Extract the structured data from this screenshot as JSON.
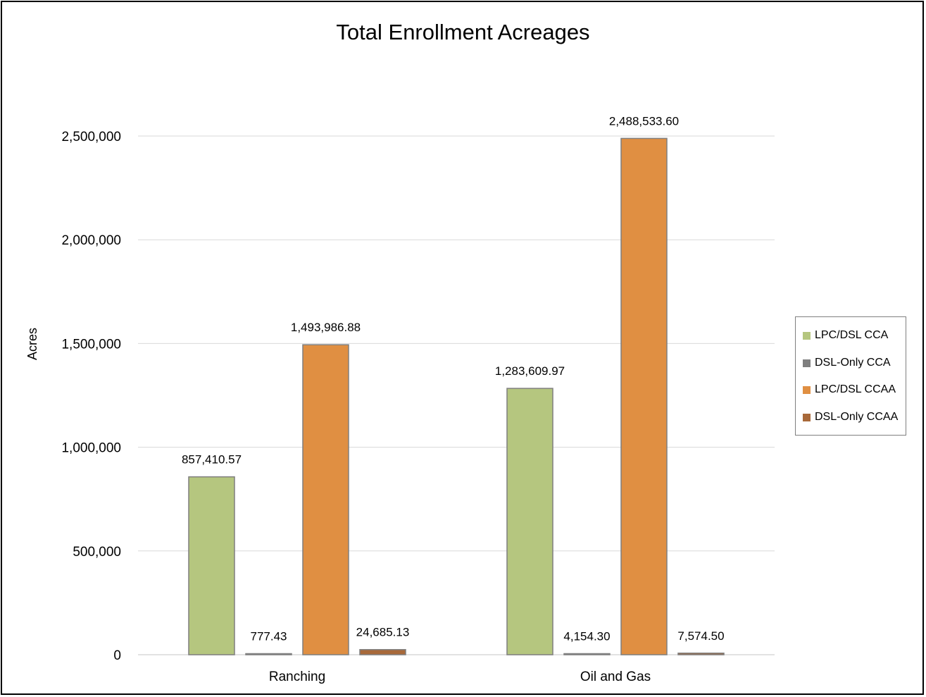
{
  "chart_data": {
    "type": "bar",
    "title": "Total Enrollment Acreages",
    "xlabel": "",
    "ylabel": "Acres",
    "categories": [
      "Ranching",
      "Oil and Gas"
    ],
    "series": [
      {
        "name": "LPC/DSL CCA",
        "values": [
          857410.57,
          1283609.97
        ],
        "labels": [
          "857,410.57",
          "1,283,609.97"
        ],
        "color": "#b5c67f"
      },
      {
        "name": "DSL-Only CCA",
        "values": [
          777.43,
          4154.3
        ],
        "labels": [
          "777.43",
          "4,154.30"
        ],
        "color": "#7f7f7f"
      },
      {
        "name": "LPC/DSL CCAA",
        "values": [
          1493986.88,
          2488533.6
        ],
        "labels": [
          "1,493,986.88",
          "2,488,533.60"
        ],
        "color": "#e08f42"
      },
      {
        "name": "DSL-Only CCAA",
        "values": [
          24685.13,
          7574.5
        ],
        "labels": [
          "24,685.13",
          "7,574.50"
        ],
        "color": "#a8693a"
      }
    ],
    "ylim": [
      0,
      2500000
    ],
    "yticks": [
      0,
      500000,
      1000000,
      1500000,
      2000000,
      2500000
    ],
    "ytick_labels": [
      "0",
      "500,000",
      "1,000,000",
      "1,500,000",
      "2,000,000",
      "2,500,000"
    ],
    "grid": true,
    "legend_position": "right",
    "bar_border_color": "#7f7f7f",
    "gridline_color": "#d9d9d9"
  }
}
